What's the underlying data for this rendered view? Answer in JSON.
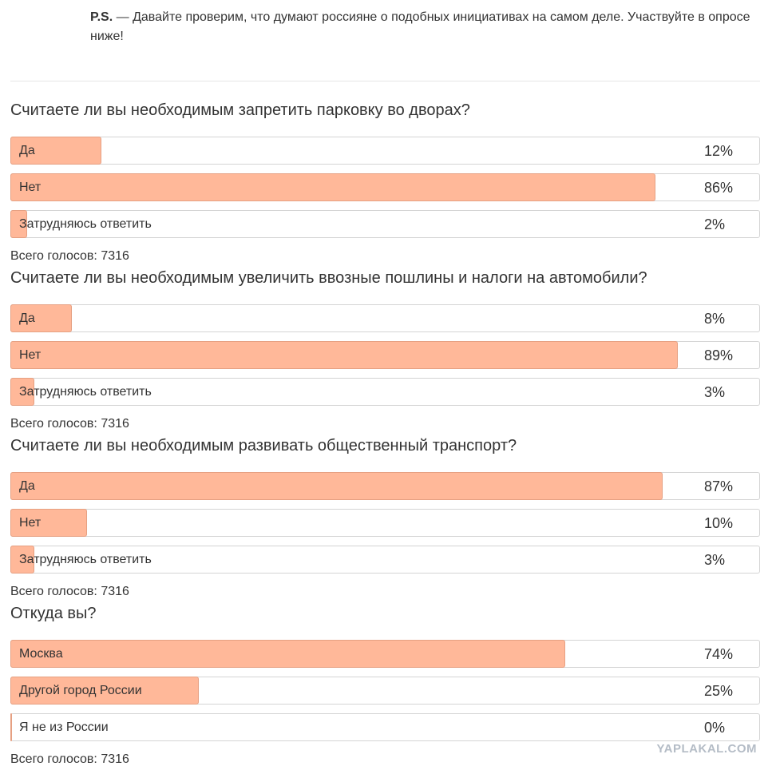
{
  "intro": {
    "lead": "P.S.",
    "text": "— Давайте проверим, что думают россияне о подобных инициативах на самом деле. Участвуйте в опросе ниже!"
  },
  "polls": [
    {
      "question": "Считаете ли вы необходимым запретить парковку во дворах?",
      "options": [
        {
          "label": "Да",
          "value": 12,
          "value_label": "12%"
        },
        {
          "label": "Нет",
          "value": 86,
          "value_label": "86%"
        },
        {
          "label": "Затрудняюсь ответить",
          "value": 2,
          "value_label": "2%"
        }
      ],
      "total": "Всего голосов: 7316"
    },
    {
      "question": "Считаете ли вы необходимым увеличить ввозные пошлины и налоги на автомобили?",
      "options": [
        {
          "label": "Да",
          "value": 8,
          "value_label": "8%"
        },
        {
          "label": "Нет",
          "value": 89,
          "value_label": "89%"
        },
        {
          "label": "Затрудняюсь ответить",
          "value": 3,
          "value_label": "3%"
        }
      ],
      "total": "Всего голосов: 7316"
    },
    {
      "question": "Считаете ли вы необходимым развивать общественный транспорт?",
      "options": [
        {
          "label": "Да",
          "value": 87,
          "value_label": "87%"
        },
        {
          "label": "Нет",
          "value": 10,
          "value_label": "10%"
        },
        {
          "label": "Затрудняюсь ответить",
          "value": 3,
          "value_label": "3%"
        }
      ],
      "total": "Всего голосов: 7316"
    },
    {
      "question": "Откуда вы?",
      "options": [
        {
          "label": "Москва",
          "value": 74,
          "value_label": "74%"
        },
        {
          "label": "Другой город России",
          "value": 25,
          "value_label": "25%"
        },
        {
          "label": "Я не из России",
          "value": 0,
          "value_label": "0%"
        }
      ],
      "total": "Всего голосов: 7316"
    }
  ],
  "watermark": "YAPLAKAL.COM"
}
